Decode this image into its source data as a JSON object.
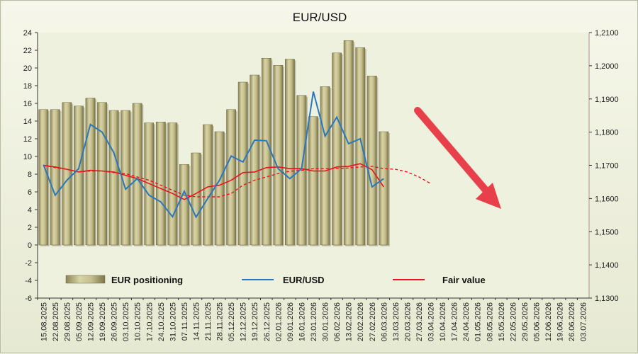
{
  "chart_data": {
    "type": "bar+line",
    "title": "EUR/USD",
    "x_labels": [
      "15.08.2025",
      "22.08.2025",
      "29.08.2025",
      "05.09.2025",
      "12.09.2025",
      "19.09.2025",
      "26.09.2025",
      "03.10.2025",
      "10.10.2025",
      "17.10.2025",
      "24.10.2025",
      "31.10.2025",
      "07.11.2025",
      "14.11.2025",
      "21.11.2025",
      "28.11.2025",
      "05.12.2025",
      "12.12.2025",
      "19.12.2025",
      "26.12.2025",
      "02.01.2026",
      "09.01.2026",
      "16.01.2026",
      "23.01.2026",
      "30.01.2026",
      "06.02.2026",
      "13.02.2026",
      "20.02.2026",
      "27.02.2026",
      "06.03.2026",
      "13.03.2026",
      "20.03.2026",
      "27.03.2026",
      "03.04.2026",
      "10.04.2026",
      "17.04.2026",
      "24.04.2026",
      "01.05.2026",
      "08.05.2026",
      "15.05.2026",
      "22.05.2026",
      "29.05.2026",
      "05.06.2026",
      "12.06.2026",
      "19.06.2026",
      "26.06.2026",
      "03.07.2026"
    ],
    "y_left": {
      "min": -6,
      "max": 24,
      "step": 2,
      "ticks": [
        "24",
        "22",
        "20",
        "18",
        "16",
        "14",
        "12",
        "10",
        "8",
        "6",
        "4",
        "2",
        "0",
        "-2",
        "-4",
        "-6"
      ]
    },
    "y_right": {
      "min": 1.13,
      "max": 1.21,
      "step": 0.01,
      "ticks": [
        "1,2100",
        "1,2000",
        "1,1900",
        "1,1800",
        "1,1700",
        "1,1600",
        "1,1500",
        "1,1400",
        "1,1300"
      ]
    },
    "series": [
      {
        "name": "EUR positioning",
        "type": "bar",
        "axis": "left",
        "color": "#c2bb87",
        "values": [
          15.3,
          15.3,
          16.1,
          15.7,
          16.6,
          16.1,
          15.2,
          15.2,
          16.0,
          13.8,
          13.9,
          13.8,
          9.1,
          10.4,
          13.6,
          12.8,
          15.3,
          18.4,
          19.2,
          21.1,
          20.3,
          21.0,
          16.9,
          14.5,
          17.9,
          21.7,
          23.1,
          22.3,
          19.1,
          12.8
        ]
      },
      {
        "name": "EUR/USD",
        "type": "line",
        "axis": "right",
        "color": "#2878be",
        "values": [
          1.1702,
          1.161,
          1.1655,
          1.169,
          1.1823,
          1.18,
          1.1738,
          1.1628,
          1.166,
          1.161,
          1.159,
          1.1545,
          1.1622,
          1.1544,
          1.16,
          1.1655,
          1.1728,
          1.171,
          1.1776,
          1.1774,
          1.169,
          1.166,
          1.169,
          1.1922,
          1.1788,
          1.1845,
          1.1765,
          1.178,
          1.1635,
          1.166
        ]
      },
      {
        "name": "Fair value",
        "type": "line",
        "axis": "right",
        "color": "#e8141c",
        "values": [
          1.17,
          1.1695,
          1.1688,
          1.168,
          1.1685,
          1.1683,
          1.168,
          1.167,
          1.166,
          1.1645,
          1.163,
          1.1615,
          1.1597,
          1.1615,
          1.1635,
          1.164,
          1.1655,
          1.1678,
          1.168,
          1.1693,
          1.1695,
          1.169,
          1.169,
          1.1683,
          1.1683,
          1.1695,
          1.1697,
          1.1705,
          1.1687,
          1.1635
        ]
      },
      {
        "name": "Fair value",
        "type": "line",
        "axis": "right",
        "color": "#e8141c",
        "style": "dashed",
        "x_start_index": 0,
        "values": [
          1.17,
          1.1693,
          1.1688,
          1.168,
          1.1683,
          1.1683,
          1.1678,
          1.1675,
          1.1665,
          1.1655,
          1.164,
          1.1625,
          1.161,
          1.1605,
          1.1605,
          1.1605,
          1.1615,
          1.164,
          1.1655,
          1.1665,
          1.1675,
          1.1682,
          1.1685,
          1.169,
          1.169,
          1.169,
          1.1692,
          1.1695,
          1.1697,
          1.169,
          1.1688,
          1.168,
          1.1665,
          1.1645
        ]
      }
    ],
    "legend": [
      "EUR positioning",
      "EUR/USD",
      "Fair value"
    ],
    "annotation": {
      "type": "arrow",
      "color": "#e8404a",
      "direction": "down-right"
    }
  }
}
